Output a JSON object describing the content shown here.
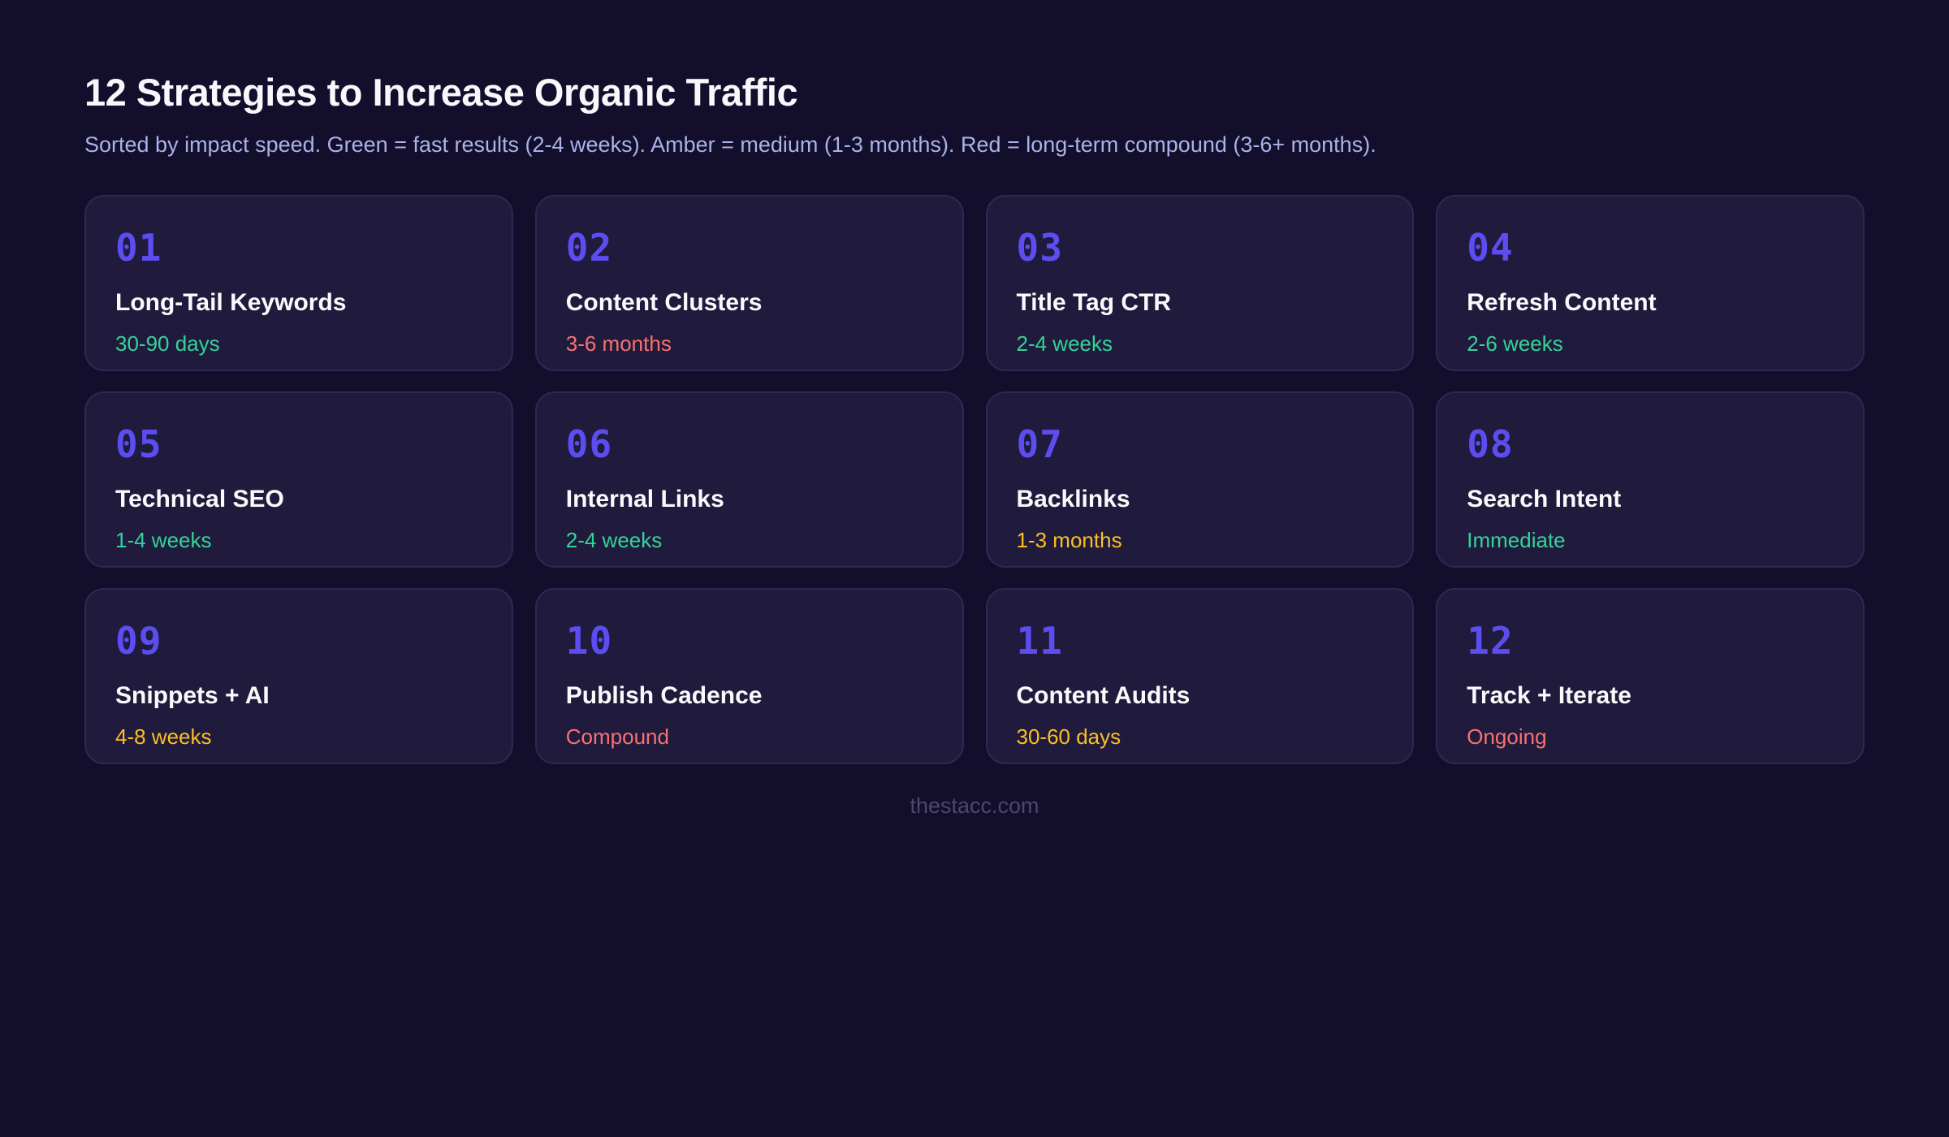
{
  "page": {
    "title": "12 Strategies to Increase Organic Traffic",
    "subtitle": "Sorted by impact speed. Green = fast results (2-4 weeks). Amber = medium (1-3 months). Red = long-term compound (3-6+ months).",
    "footer": "thestacc.com"
  },
  "colors": {
    "background": "#120e2b",
    "card_background": "#201b3c",
    "card_border": "#2e2852",
    "number_indigo": "#5b4df0",
    "title_white": "#fafafd",
    "subtitle_lavender": "#a9b3ea",
    "green_fast": "#34d399",
    "amber_medium": "#fbbf24",
    "red_long": "#f87171",
    "footer_muted": "#4d4768"
  },
  "cards": [
    {
      "number": "01",
      "title": "Long-Tail Keywords",
      "timeframe": "30-90 days",
      "speed": "green",
      "time_color": "#34d399"
    },
    {
      "number": "02",
      "title": "Content Clusters",
      "timeframe": "3-6 months",
      "speed": "red",
      "time_color": "#f87171"
    },
    {
      "number": "03",
      "title": "Title Tag CTR",
      "timeframe": "2-4 weeks",
      "speed": "green",
      "time_color": "#34d399"
    },
    {
      "number": "04",
      "title": "Refresh Content",
      "timeframe": "2-6 weeks",
      "speed": "green",
      "time_color": "#34d399"
    },
    {
      "number": "05",
      "title": "Technical SEO",
      "timeframe": "1-4 weeks",
      "speed": "green",
      "time_color": "#34d399"
    },
    {
      "number": "06",
      "title": "Internal Links",
      "timeframe": "2-4 weeks",
      "speed": "green",
      "time_color": "#34d399"
    },
    {
      "number": "07",
      "title": "Backlinks",
      "timeframe": "1-3 months",
      "speed": "amber",
      "time_color": "#fbbf24"
    },
    {
      "number": "08",
      "title": "Search Intent",
      "timeframe": "Immediate",
      "speed": "green",
      "time_color": "#34d399"
    },
    {
      "number": "09",
      "title": "Snippets + AI",
      "timeframe": "4-8 weeks",
      "speed": "amber",
      "time_color": "#fbbf24"
    },
    {
      "number": "10",
      "title": "Publish Cadence",
      "timeframe": "Compound",
      "speed": "red",
      "time_color": "#f87171"
    },
    {
      "number": "11",
      "title": "Content Audits",
      "timeframe": "30-60 days",
      "speed": "amber",
      "time_color": "#fbbf24"
    },
    {
      "number": "12",
      "title": "Track + Iterate",
      "timeframe": "Ongoing",
      "speed": "red",
      "time_color": "#f87171"
    }
  ]
}
